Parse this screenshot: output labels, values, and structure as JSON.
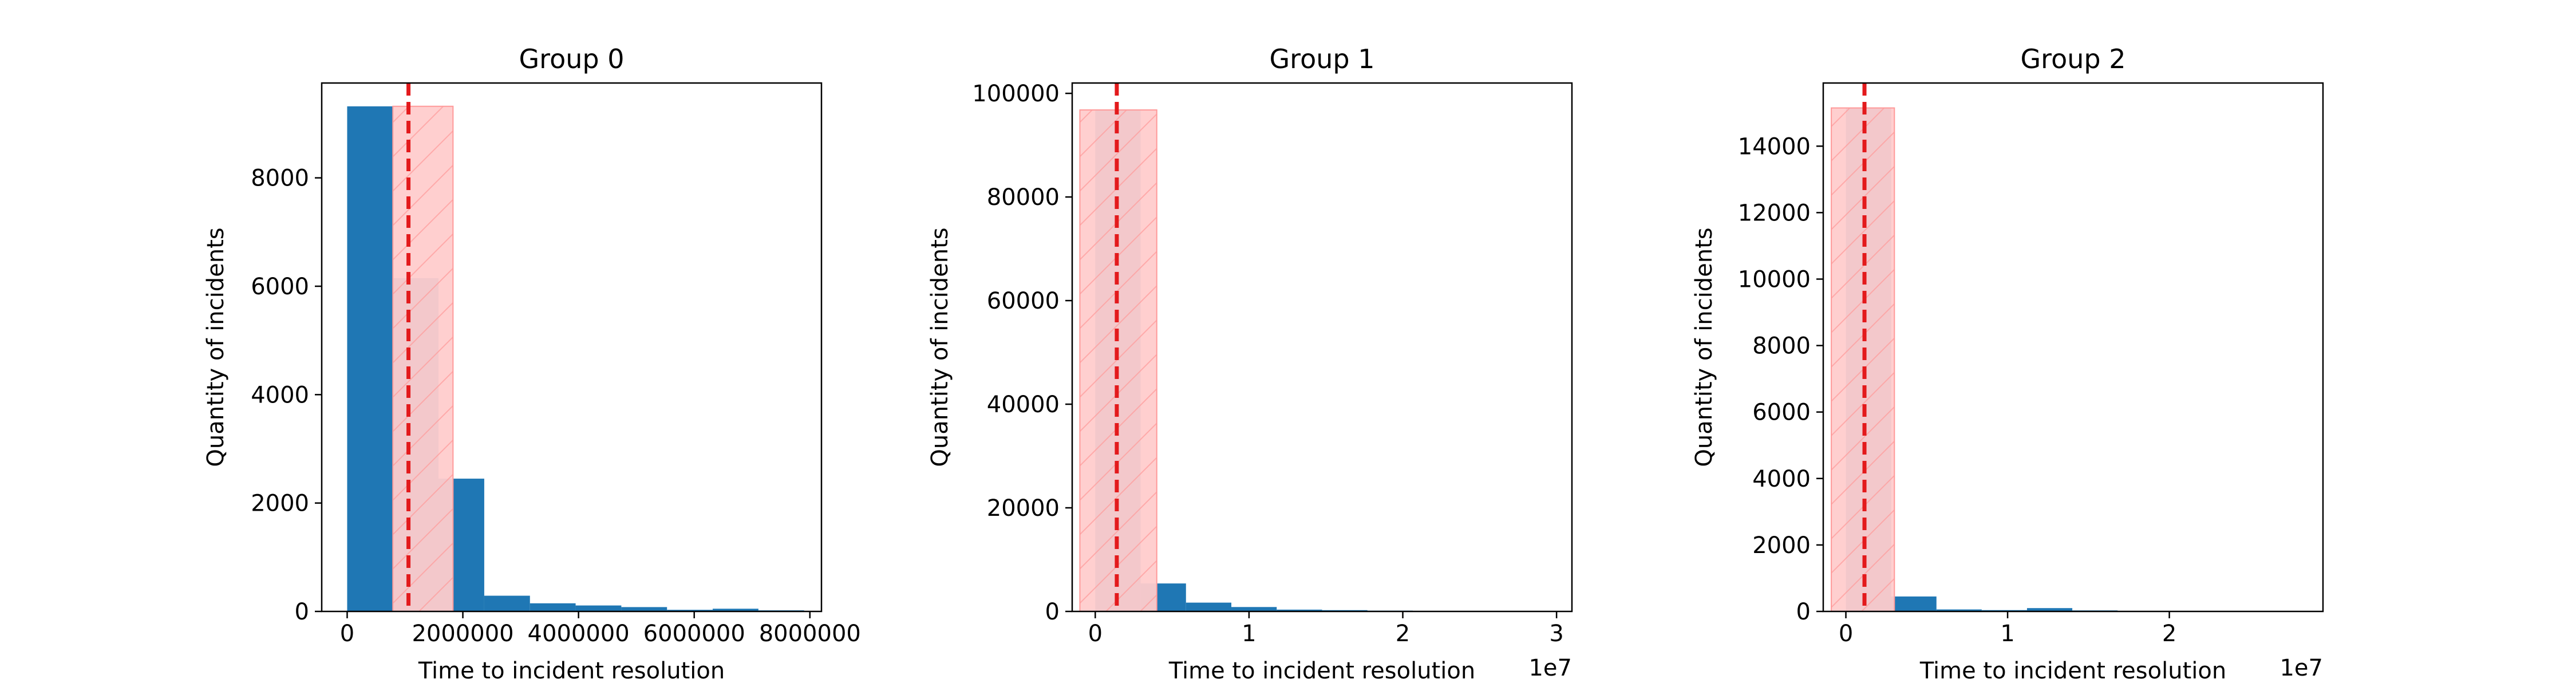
{
  "colors": {
    "bar": "#1f77b4",
    "band_fill": "#ffcccc",
    "band_edge": "#ff9999",
    "hatch": "#ff9999",
    "mean_line": "#e31a1c"
  },
  "chart_data": [
    {
      "type": "bar",
      "title": "Group 0",
      "xlabel": "Time to incident resolution",
      "ylabel": "Quantity of incidents",
      "xlim": [
        -440000,
        8200000
      ],
      "ylim": [
        0,
        9750
      ],
      "x_ticks": [
        0,
        2000000,
        4000000,
        6000000,
        8000000
      ],
      "x_tick_labels": [
        "0",
        "2000000",
        "4000000",
        "6000000",
        "8000000"
      ],
      "y_ticks": [
        0,
        2000,
        4000,
        6000,
        8000
      ],
      "y_tick_labels": [
        "0",
        "2000",
        "4000",
        "6000",
        "8000"
      ],
      "offset_label": "",
      "bins": [
        {
          "x0": 0,
          "x1": 790000,
          "count": 9320
        },
        {
          "x0": 790000,
          "x1": 1580000,
          "count": 6150
        },
        {
          "x0": 1580000,
          "x1": 2370000,
          "count": 2450
        },
        {
          "x0": 2370000,
          "x1": 3160000,
          "count": 290
        },
        {
          "x0": 3160000,
          "x1": 3950000,
          "count": 150
        },
        {
          "x0": 3950000,
          "x1": 4740000,
          "count": 110
        },
        {
          "x0": 4740000,
          "x1": 5530000,
          "count": 80
        },
        {
          "x0": 5530000,
          "x1": 6320000,
          "count": 30
        },
        {
          "x0": 6320000,
          "x1": 7110000,
          "count": 50
        },
        {
          "x0": 7110000,
          "x1": 7900000,
          "count": 20
        }
      ],
      "mean": 1060000,
      "band": {
        "x0": 790000,
        "x1": 1830000,
        "top": 9320
      }
    },
    {
      "type": "bar",
      "title": "Group 1",
      "xlabel": "Time to incident resolution",
      "ylabel": "Quantity of incidents",
      "xlim": [
        -1500000,
        31000000
      ],
      "ylim": [
        0,
        102000
      ],
      "x_ticks": [
        0,
        10000000,
        20000000,
        30000000
      ],
      "x_tick_labels": [
        "0",
        "1",
        "2",
        "3"
      ],
      "y_ticks": [
        0,
        20000,
        40000,
        60000,
        80000,
        100000
      ],
      "y_tick_labels": [
        "0",
        "20000",
        "40000",
        "60000",
        "80000",
        "100000"
      ],
      "offset_label": "1e7",
      "bins": [
        {
          "x0": 0,
          "x1": 2950000,
          "count": 96800
        },
        {
          "x0": 2950000,
          "x1": 5900000,
          "count": 5400
        },
        {
          "x0": 5900000,
          "x1": 8850000,
          "count": 1700
        },
        {
          "x0": 8850000,
          "x1": 11800000,
          "count": 850
        },
        {
          "x0": 11800000,
          "x1": 14750000,
          "count": 350
        },
        {
          "x0": 14750000,
          "x1": 17700000,
          "count": 250
        },
        {
          "x0": 17700000,
          "x1": 20650000,
          "count": 150
        },
        {
          "x0": 20650000,
          "x1": 23600000,
          "count": 80
        },
        {
          "x0": 23600000,
          "x1": 26550000,
          "count": 40
        },
        {
          "x0": 26550000,
          "x1": 29500000,
          "count": 20
        }
      ],
      "mean": 1400000,
      "band": {
        "x0": -1000000,
        "x1": 4000000,
        "top": 96800
      }
    },
    {
      "type": "bar",
      "title": "Group 2",
      "xlabel": "Time to incident resolution",
      "ylabel": "Quantity of incidents",
      "xlim": [
        -1400000,
        29500000
      ],
      "ylim": [
        0,
        15900
      ],
      "x_ticks": [
        0,
        10000000,
        20000000
      ],
      "x_tick_labels": [
        "0",
        "1",
        "2"
      ],
      "y_ticks": [
        0,
        2000,
        4000,
        6000,
        8000,
        10000,
        12000,
        14000
      ],
      "y_tick_labels": [
        "0",
        "2000",
        "4000",
        "6000",
        "8000",
        "10000",
        "12000",
        "14000"
      ],
      "offset_label": "1e7",
      "bins": [
        {
          "x0": 0,
          "x1": 2800000,
          "count": 15150
        },
        {
          "x0": 2800000,
          "x1": 5600000,
          "count": 450
        },
        {
          "x0": 5600000,
          "x1": 8400000,
          "count": 60
        },
        {
          "x0": 8400000,
          "x1": 11200000,
          "count": 40
        },
        {
          "x0": 11200000,
          "x1": 14000000,
          "count": 100
        },
        {
          "x0": 14000000,
          "x1": 16800000,
          "count": 30
        },
        {
          "x0": 16800000,
          "x1": 19600000,
          "count": 15
        },
        {
          "x0": 19600000,
          "x1": 22400000,
          "count": 10
        },
        {
          "x0": 22400000,
          "x1": 25200000,
          "count": 5
        },
        {
          "x0": 25200000,
          "x1": 28000000,
          "count": 5
        }
      ],
      "mean": 1150000,
      "band": {
        "x0": -900000,
        "x1": 3000000,
        "top": 15150
      }
    }
  ]
}
